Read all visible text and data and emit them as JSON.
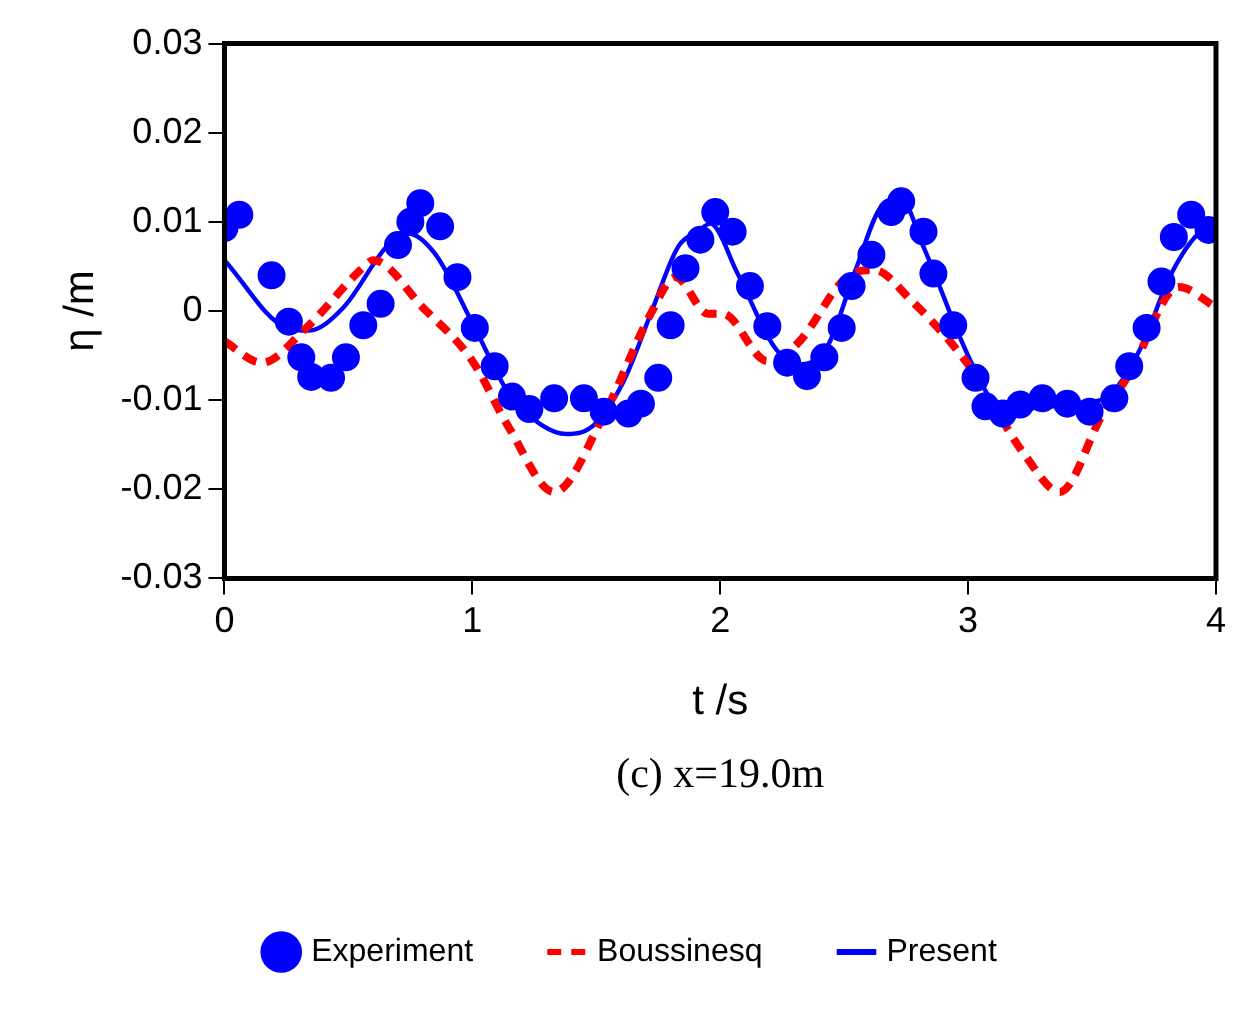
{
  "chart_data": {
    "type": "line",
    "xlabel": "t /s",
    "ylabel": "η /m",
    "annotations": [
      "(c) x=19.0m"
    ],
    "xlim": [
      0,
      4
    ],
    "xticks": [
      0,
      1,
      2,
      3,
      4
    ],
    "ylim": [
      -0.03,
      0.03
    ],
    "yticks": [
      -0.03,
      -0.02,
      -0.01,
      0,
      0.01,
      0.02,
      0.03
    ],
    "grid": false,
    "legend": "bottom",
    "series": [
      {
        "name": "Experiment",
        "type": "scatter",
        "marker": "circle",
        "color": "#0000ff",
        "x": [
          0.0,
          0.06,
          0.19,
          0.26,
          0.31,
          0.35,
          0.43,
          0.49,
          0.56,
          0.63,
          0.7,
          0.75,
          0.79,
          0.87,
          0.94,
          1.01,
          1.09,
          1.16,
          1.23,
          1.33,
          1.45,
          1.53,
          1.63,
          1.68,
          1.75,
          1.8,
          1.86,
          1.92,
          1.98,
          2.05,
          2.12,
          2.19,
          2.27,
          2.35,
          2.42,
          2.49,
          2.53,
          2.61,
          2.69,
          2.73,
          2.82,
          2.86,
          2.94,
          3.03,
          3.07,
          3.14,
          3.21,
          3.3,
          3.4,
          3.49,
          3.59,
          3.65,
          3.72,
          3.78,
          3.83,
          3.9,
          3.97
        ],
        "values": [
          0.0093,
          0.0108,
          0.004,
          -0.0012,
          -0.0052,
          -0.0074,
          -0.0075,
          -0.0052,
          -0.0016,
          0.0008,
          0.0074,
          0.01,
          0.0121,
          0.0095,
          0.0038,
          -0.0019,
          -0.0062,
          -0.0096,
          -0.011,
          -0.0098,
          -0.0098,
          -0.0113,
          -0.0115,
          -0.0104,
          -0.0075,
          -0.0016,
          0.0048,
          0.008,
          0.0111,
          0.0089,
          0.0028,
          -0.0017,
          -0.0058,
          -0.0073,
          -0.0052,
          -0.0019,
          0.0028,
          0.0063,
          0.0111,
          0.0123,
          0.0089,
          0.0042,
          -0.0016,
          -0.0075,
          -0.0107,
          -0.0115,
          -0.0105,
          -0.0098,
          -0.0104,
          -0.0113,
          -0.0098,
          -0.0062,
          -0.0019,
          0.0033,
          0.0083,
          0.0108,
          0.0091
        ]
      },
      {
        "name": "Boussinesq",
        "line_style": "dashed",
        "marker": "none",
        "color": "#ff0000",
        "x": [
          0,
          0.15,
          0.33,
          0.56,
          0.6,
          0.8,
          1.0,
          1.15,
          1.33,
          1.53,
          1.72,
          1.82,
          1.95,
          2.01,
          2.19,
          2.31,
          2.51,
          2.62,
          2.77,
          3.0,
          3.23,
          3.37,
          3.54,
          3.65,
          3.85,
          4.0
        ],
        "values": [
          -0.0034,
          -0.0058,
          -0.0019,
          0.0049,
          0.0057,
          0.0004,
          -0.0056,
          -0.0132,
          -0.0203,
          -0.0117,
          -0.0003,
          0.0038,
          -0.0003,
          -0.0003,
          -0.0056,
          -0.0037,
          0.0038,
          0.0046,
          0.0012,
          -0.006,
          -0.0162,
          -0.0203,
          -0.0117,
          -0.0071,
          0.0027,
          0.0004
        ]
      },
      {
        "name": "Present",
        "line_style": "solid",
        "marker": "none",
        "color": "#0000ff",
        "x": [
          0,
          0.25,
          0.34,
          0.48,
          0.66,
          0.74,
          0.85,
          1.01,
          1.15,
          1.28,
          1.38,
          1.49,
          1.61,
          1.72,
          1.83,
          1.91,
          1.96,
          2.07,
          2.22,
          2.31,
          2.43,
          2.55,
          2.65,
          2.73,
          2.82,
          3.01,
          3.12,
          3.26,
          3.42,
          3.55,
          3.69,
          3.82,
          3.93,
          4.0
        ],
        "values": [
          0.0057,
          -0.0019,
          -0.0022,
          0.0004,
          0.0074,
          0.0087,
          0.0064,
          -0.0019,
          -0.0094,
          -0.0128,
          -0.0138,
          -0.0128,
          -0.0079,
          -0.0003,
          0.0072,
          0.0089,
          0.0098,
          0.0042,
          -0.0041,
          -0.006,
          -0.0041,
          0.0049,
          0.0117,
          0.0125,
          0.0072,
          -0.0056,
          -0.0105,
          -0.0109,
          -0.0104,
          -0.0098,
          -0.0045,
          0.0042,
          0.0087,
          0.0095
        ]
      }
    ]
  }
}
